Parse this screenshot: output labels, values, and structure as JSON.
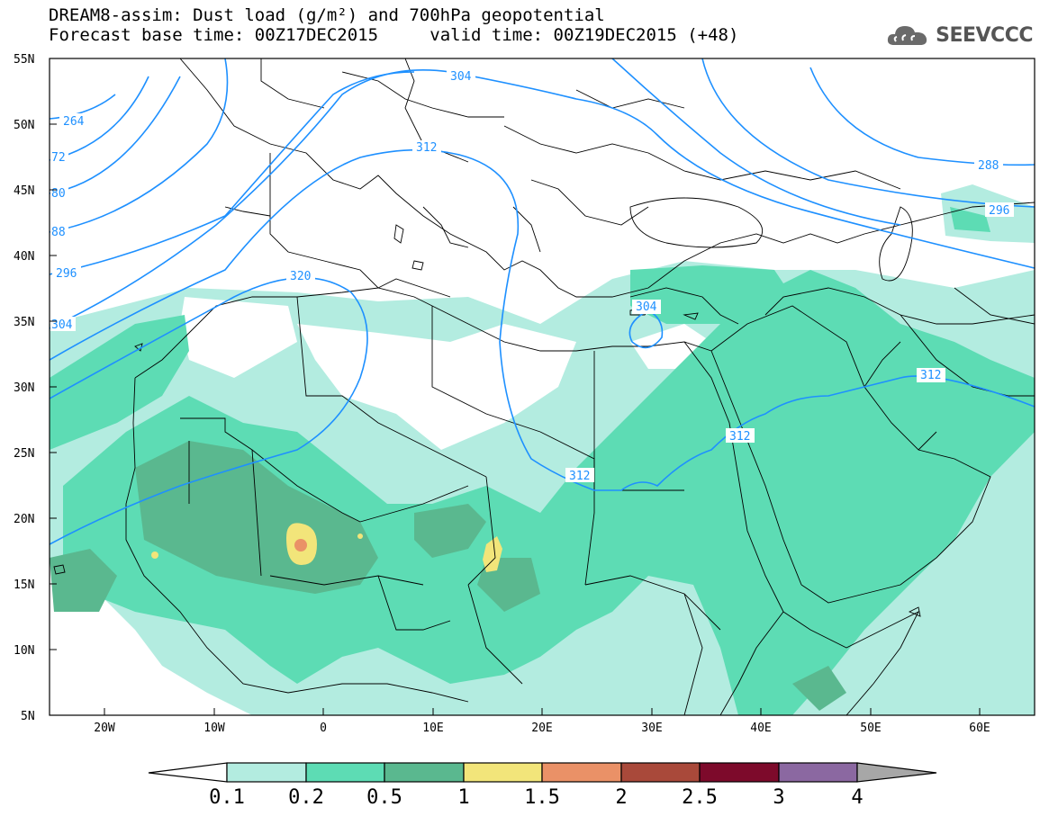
{
  "title": {
    "line1": "DREAM8-assim: Dust load (g/m²) and 700hPa geopotential",
    "line2_left": "Forecast base time: 00Z17DEC2015",
    "line2_right": "valid time: 00Z19DEC2015 (+48)"
  },
  "logo": {
    "text": "SEEVCCC",
    "icon": "cloud-icon"
  },
  "map": {
    "lat_labels": [
      "55N",
      "50N",
      "45N",
      "40N",
      "35N",
      "30N",
      "25N",
      "20N",
      "15N",
      "10N",
      "5N"
    ],
    "lon_labels": [
      "20W",
      "10W",
      "0",
      "10E",
      "20E",
      "30E",
      "40E",
      "50E",
      "60E"
    ],
    "contour_labels": [
      "264",
      "72",
      "80",
      "88",
      "296",
      "304",
      "304",
      "312",
      "320",
      "304",
      "312",
      "312",
      "312",
      "288",
      "296"
    ]
  },
  "colorbar": {
    "labels": [
      "0.1",
      "0.2",
      "0.5",
      "1",
      "1.5",
      "2",
      "2.5",
      "3",
      "4"
    ],
    "colors": [
      "#ffffff",
      "#b3ece0",
      "#5ddcb4",
      "#5ab88f",
      "#f2e57a",
      "#ea9167",
      "#a9493a",
      "#7d0a2b",
      "#8b68a1",
      "#a7a7a7"
    ]
  },
  "palette": {
    "dust_0.1": "#b3ece0",
    "dust_0.2": "#5ddcb4",
    "dust_0.5": "#5ab88f",
    "dust_1": "#f2e57a",
    "dust_1.5": "#ea9167",
    "geopotential": "#1e90ff",
    "borders": "#000000"
  }
}
